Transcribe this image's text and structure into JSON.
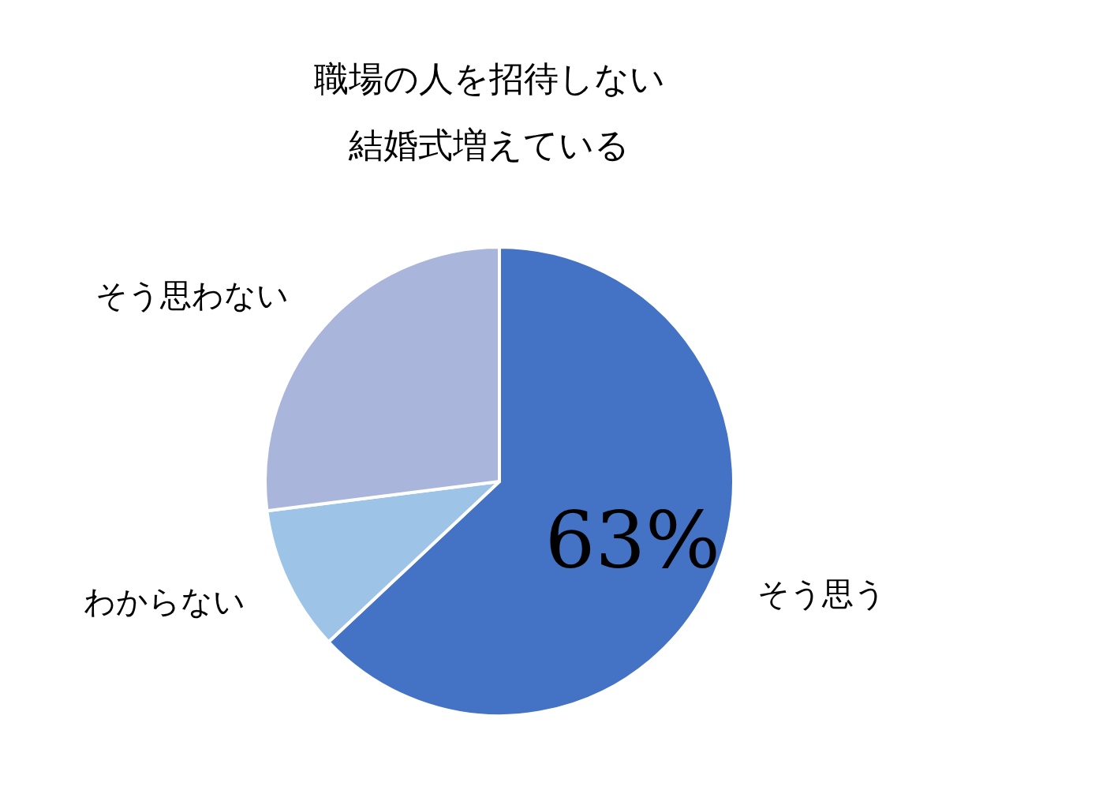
{
  "chart_data": {
    "type": "pie",
    "title": "職場の人を招待しない結婚式増えている",
    "categories": [
      "そう思う",
      "わからない",
      "そう思わない"
    ],
    "values": [
      63,
      10,
      27
    ],
    "colors": [
      "#4472c4",
      "#9dc3e6",
      "#a9b5da"
    ],
    "value_labels": [
      "63%",
      null,
      null
    ]
  }
}
